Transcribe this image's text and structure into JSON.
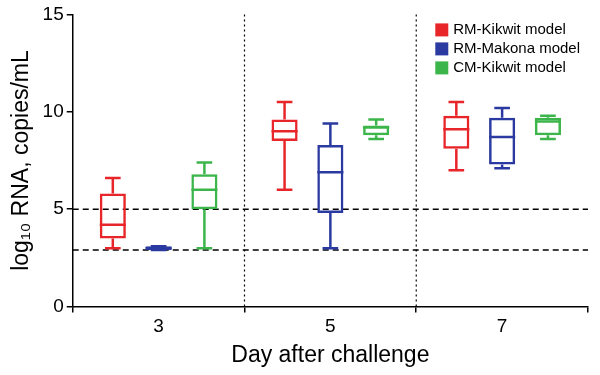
{
  "chart_data": {
    "type": "boxplot",
    "x_label": "Day after challenge",
    "y_label": "log₁₀ RNA, copies/mL",
    "categories": [
      "3",
      "5",
      "7"
    ],
    "series": [
      {
        "name": "RM-Kikwit model",
        "color": "#e8262a",
        "min": [
          3.0,
          6.0,
          7.0
        ],
        "q1": [
          3.5,
          8.5,
          8.1
        ],
        "median": [
          4.2,
          9.0,
          9.1
        ],
        "q3": [
          5.8,
          9.6,
          9.8
        ],
        "max": [
          6.6,
          10.5,
          10.5
        ]
      },
      {
        "name": "RM-Makona model",
        "color": "#2b3aa0",
        "min": [
          2.9,
          3.0,
          7.1
        ],
        "q1": [
          2.9,
          4.8,
          7.3
        ],
        "median": [
          3.0,
          6.9,
          8.7
        ],
        "q3": [
          3.1,
          8.3,
          9.7
        ],
        "max": [
          3.1,
          9.4,
          10.2
        ]
      },
      {
        "name": "CM-Kikwit model",
        "color": "#3cb54a",
        "min": [
          3.0,
          8.6,
          8.6
        ],
        "q1": [
          5.0,
          8.8,
          8.8
        ],
        "median": [
          6.0,
          9.2,
          9.5
        ],
        "q3": [
          6.8,
          9.3,
          9.7
        ],
        "max": [
          7.4,
          9.6,
          9.8
        ]
      }
    ],
    "reference_lines": [
      5,
      2.9
    ],
    "ylim": [
      0,
      15
    ],
    "yticks": [
      0,
      5,
      10,
      15
    ],
    "grid": false,
    "legend": "top-right"
  }
}
